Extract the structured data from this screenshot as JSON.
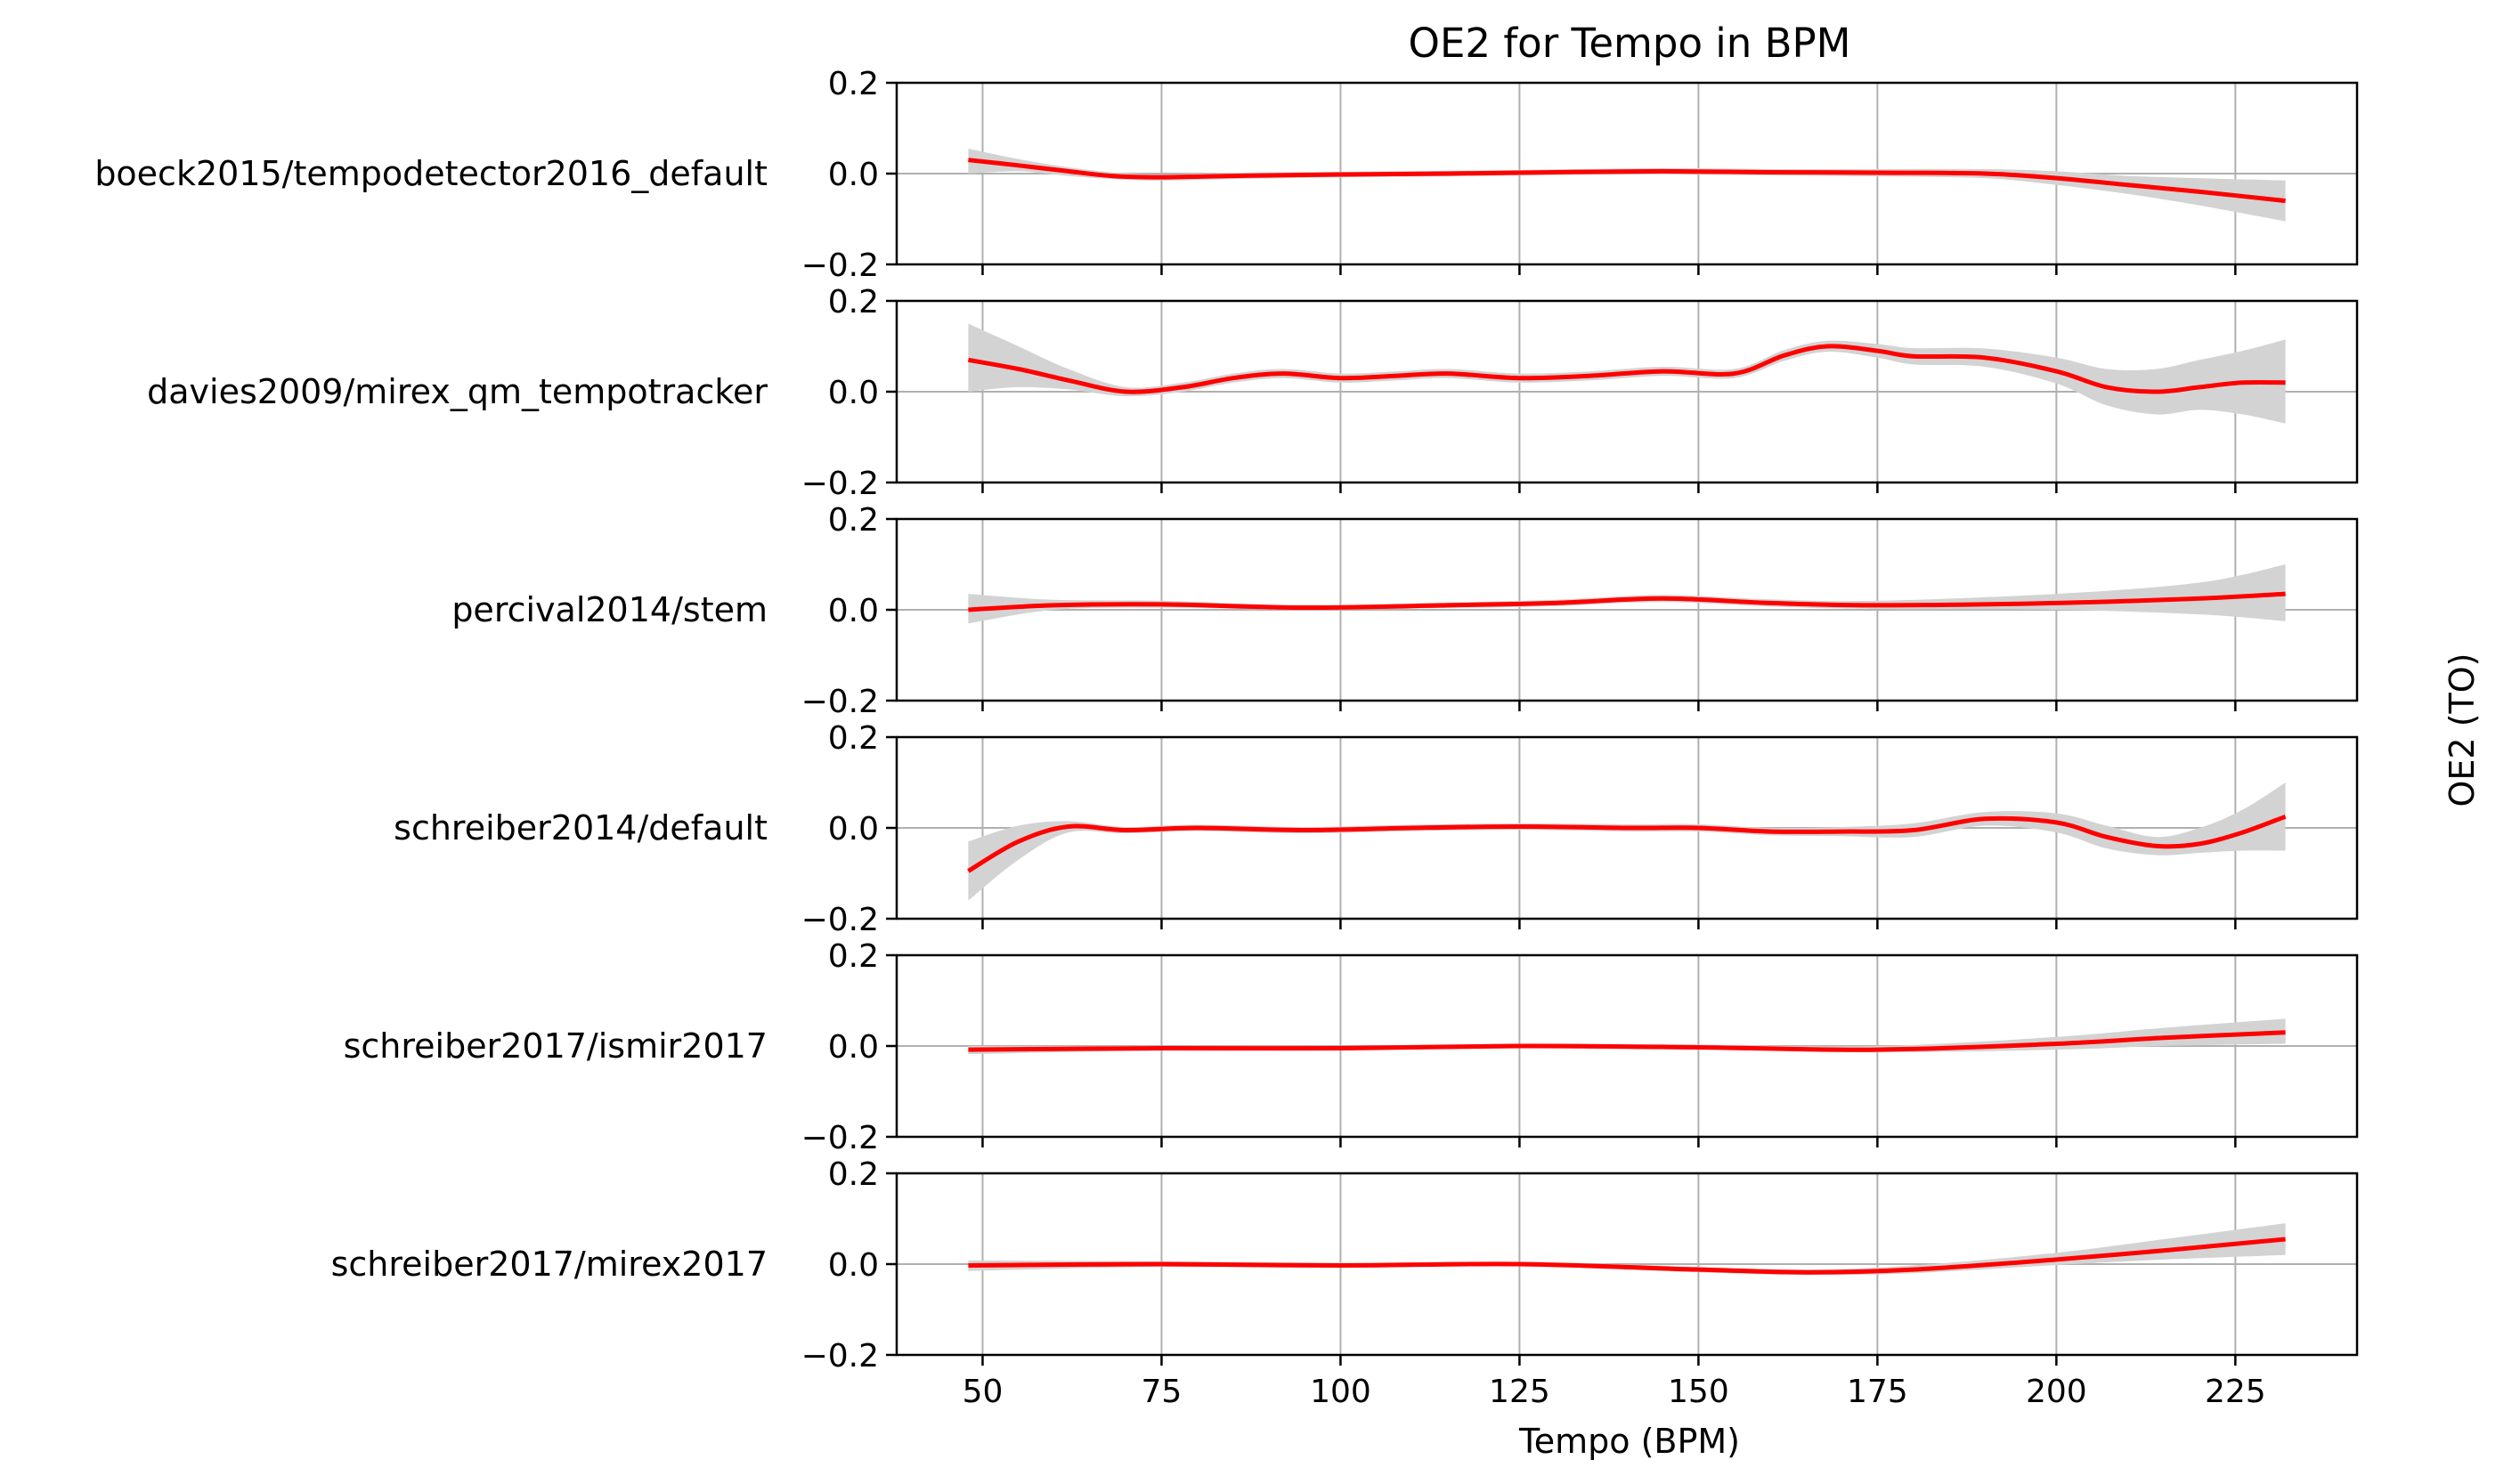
{
  "chart_data": {
    "type": "line",
    "title": "OE2 for Tempo in BPM",
    "xlabel": "Tempo (BPM)",
    "ylabel": "OE2 (TO)",
    "xlim": [
      38,
      242
    ],
    "ylim": [
      -0.2,
      0.2
    ],
    "xticks": [
      50,
      75,
      100,
      125,
      150,
      175,
      200,
      225
    ],
    "xtick_labels": [
      "50",
      "75",
      "100",
      "125",
      "150",
      "175",
      "200",
      "225"
    ],
    "yticks": [
      -0.2,
      0.0,
      0.2
    ],
    "ytick_labels": [
      "−0.2",
      "0.0",
      "0.2"
    ],
    "grid": true,
    "line_color": "#ff0000",
    "band_color": "#d3d3d3",
    "zero_line_color": "#b0b0b0",
    "panels": [
      {
        "name": "boeck2015/tempodetector2016_default",
        "x": [
          48,
          55,
          62,
          68,
          75,
          85,
          100,
          115,
          130,
          145,
          160,
          175,
          190,
          200,
          210,
          220,
          232
        ],
        "y": [
          0.03,
          0.018,
          0.005,
          -0.005,
          -0.008,
          -0.005,
          -0.002,
          0.0,
          0.003,
          0.005,
          0.003,
          0.002,
          0.0,
          -0.01,
          -0.025,
          -0.04,
          -0.06
        ],
        "lower": [
          0.0,
          0.005,
          -0.005,
          -0.012,
          -0.015,
          -0.012,
          -0.008,
          -0.006,
          -0.003,
          -0.002,
          -0.004,
          -0.006,
          -0.01,
          -0.025,
          -0.045,
          -0.07,
          -0.105
        ],
        "upper": [
          0.055,
          0.032,
          0.014,
          0.003,
          -0.002,
          0.002,
          0.004,
          0.006,
          0.009,
          0.012,
          0.01,
          0.01,
          0.01,
          0.005,
          -0.005,
          -0.01,
          -0.015
        ]
      },
      {
        "name": "davies2009/mirex_qm_tempotracker",
        "x": [
          48,
          55,
          62,
          70,
          78,
          85,
          92,
          100,
          108,
          115,
          125,
          135,
          145,
          155,
          162,
          168,
          175,
          180,
          190,
          200,
          207,
          214,
          220,
          226,
          232
        ],
        "y": [
          0.07,
          0.05,
          0.025,
          0.0,
          0.01,
          0.03,
          0.04,
          0.03,
          0.035,
          0.04,
          0.03,
          0.035,
          0.045,
          0.04,
          0.08,
          0.1,
          0.09,
          0.078,
          0.075,
          0.045,
          0.01,
          0.0,
          0.01,
          0.02,
          0.02
        ],
        "lower": [
          0.0,
          0.01,
          0.005,
          -0.01,
          0.0,
          0.02,
          0.03,
          0.02,
          0.025,
          0.03,
          0.02,
          0.025,
          0.035,
          0.03,
          0.068,
          0.088,
          0.075,
          0.06,
          0.055,
          0.018,
          -0.03,
          -0.05,
          -0.04,
          -0.05,
          -0.07
        ],
        "upper": [
          0.15,
          0.1,
          0.05,
          0.01,
          0.02,
          0.04,
          0.05,
          0.04,
          0.045,
          0.05,
          0.04,
          0.045,
          0.055,
          0.05,
          0.092,
          0.112,
          0.105,
          0.096,
          0.095,
          0.075,
          0.05,
          0.05,
          0.07,
          0.09,
          0.115
        ]
      },
      {
        "name": "percival2014/stem",
        "x": [
          48,
          60,
          75,
          95,
          115,
          130,
          145,
          160,
          175,
          200,
          220,
          232
        ],
        "y": [
          0.0,
          0.01,
          0.012,
          0.005,
          0.01,
          0.015,
          0.025,
          0.015,
          0.01,
          0.015,
          0.025,
          0.035
        ],
        "lower": [
          -0.03,
          0.0,
          0.005,
          0.0,
          0.004,
          0.008,
          0.017,
          0.007,
          0.002,
          0.0,
          -0.01,
          -0.025
        ],
        "upper": [
          0.035,
          0.022,
          0.02,
          0.01,
          0.016,
          0.022,
          0.033,
          0.023,
          0.02,
          0.035,
          0.06,
          0.1
        ]
      },
      {
        "name": "schreiber2014/default",
        "x": [
          48,
          55,
          62,
          70,
          80,
          95,
          110,
          125,
          140,
          150,
          160,
          170,
          180,
          190,
          200,
          207,
          214,
          220,
          226,
          232
        ],
        "y": [
          -0.095,
          -0.03,
          0.003,
          -0.005,
          0.0,
          -0.005,
          0.0,
          0.003,
          0.0,
          0.0,
          -0.008,
          -0.008,
          -0.005,
          0.02,
          0.012,
          -0.02,
          -0.04,
          -0.035,
          -0.01,
          0.025
        ],
        "lower": [
          -0.16,
          -0.07,
          -0.01,
          -0.012,
          -0.007,
          -0.012,
          -0.007,
          -0.004,
          -0.008,
          -0.008,
          -0.016,
          -0.018,
          -0.02,
          0.005,
          -0.01,
          -0.045,
          -0.06,
          -0.055,
          -0.05,
          -0.05
        ],
        "upper": [
          -0.03,
          0.005,
          0.015,
          0.002,
          0.007,
          0.002,
          0.007,
          0.01,
          0.008,
          0.008,
          0.0,
          0.002,
          0.01,
          0.035,
          0.032,
          0.005,
          -0.02,
          0.0,
          0.04,
          0.1
        ]
      },
      {
        "name": "schreiber2017/ismir2017",
        "x": [
          48,
          75,
          100,
          125,
          150,
          175,
          200,
          215,
          232
        ],
        "y": [
          -0.008,
          -0.005,
          -0.005,
          0.0,
          -0.003,
          -0.008,
          0.005,
          0.018,
          0.03
        ],
        "lower": [
          -0.018,
          -0.01,
          -0.01,
          -0.005,
          -0.008,
          -0.014,
          -0.008,
          0.0,
          0.005
        ],
        "upper": [
          0.0,
          0.0,
          0.0,
          0.005,
          0.003,
          0.0,
          0.02,
          0.04,
          0.06
        ]
      },
      {
        "name": "schreiber2017/mirex2017",
        "x": [
          48,
          75,
          100,
          125,
          150,
          165,
          180,
          200,
          215,
          232
        ],
        "y": [
          -0.003,
          0.0,
          -0.003,
          0.0,
          -0.012,
          -0.018,
          -0.012,
          0.01,
          0.03,
          0.055
        ],
        "lower": [
          -0.015,
          -0.006,
          -0.008,
          -0.005,
          -0.018,
          -0.024,
          -0.02,
          -0.002,
          0.01,
          0.02
        ],
        "upper": [
          0.008,
          0.006,
          0.003,
          0.005,
          -0.006,
          -0.012,
          -0.003,
          0.025,
          0.055,
          0.09
        ]
      }
    ]
  }
}
